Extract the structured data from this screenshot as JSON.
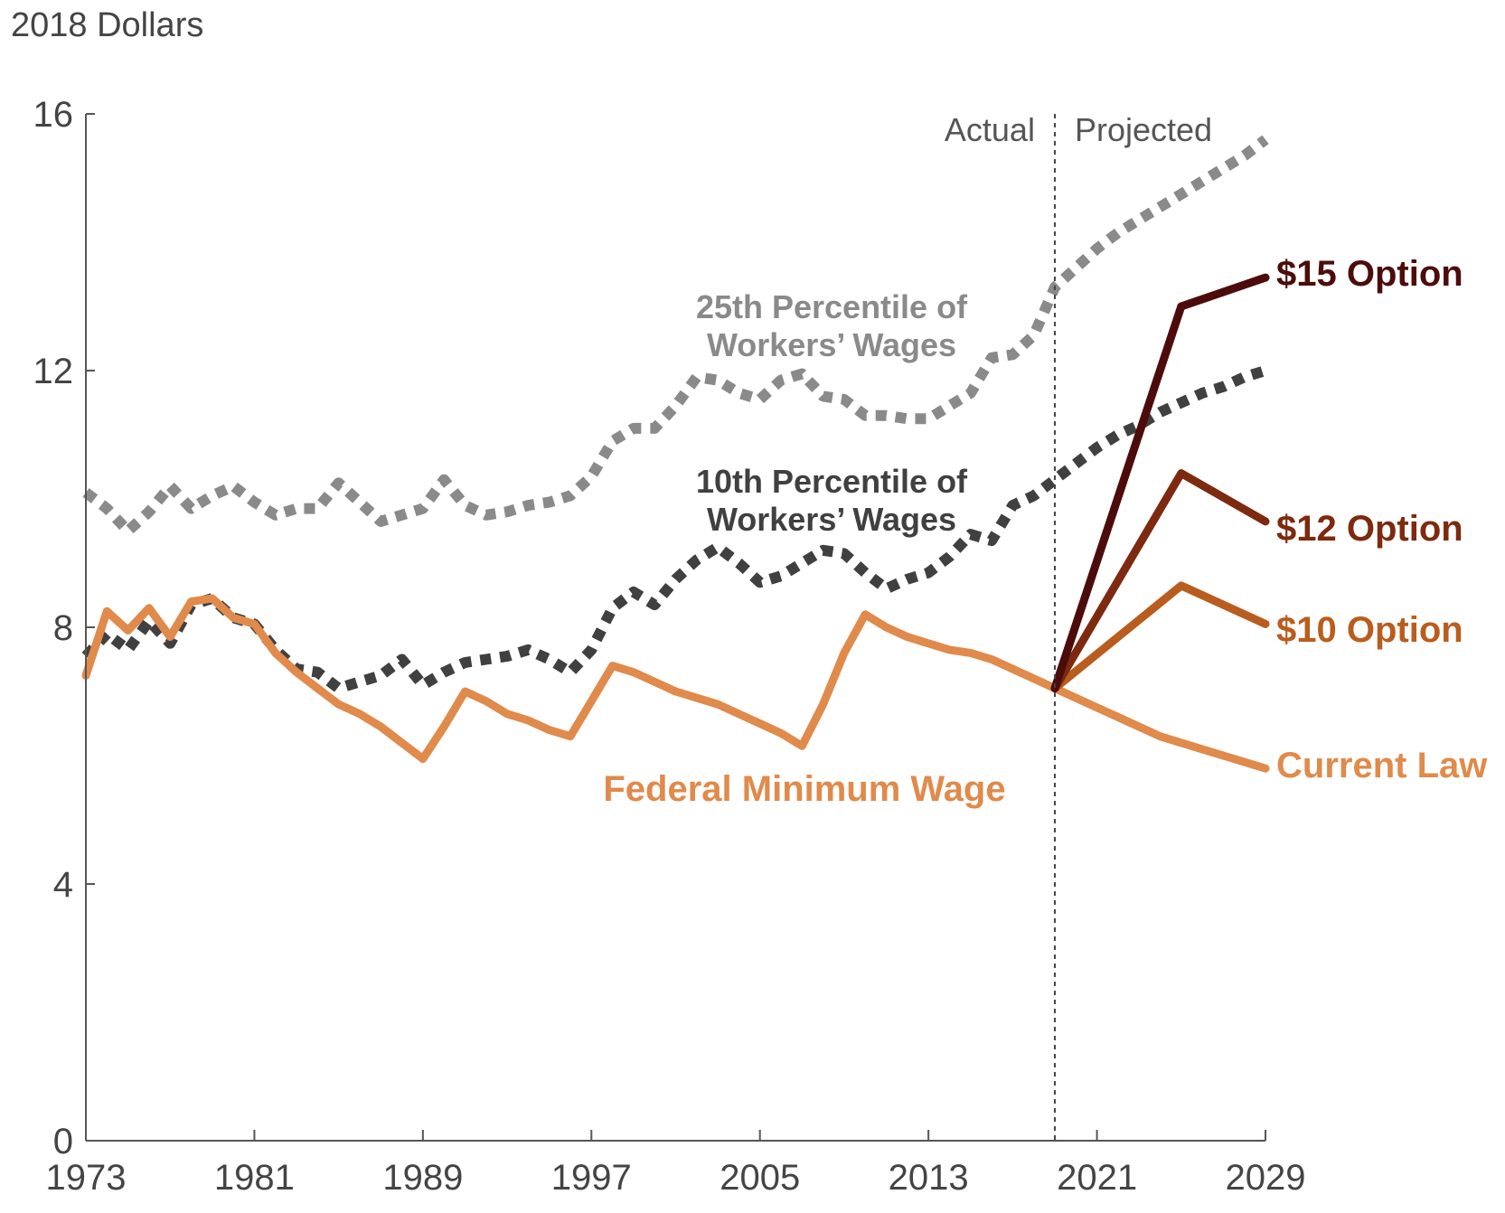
{
  "chart_data": {
    "type": "line",
    "ylabel": "2018 Dollars",
    "ylim": [
      0,
      16
    ],
    "yticks": [
      0,
      4,
      8,
      12,
      16
    ],
    "xlim": [
      1973,
      2029
    ],
    "xticks": [
      1973,
      1981,
      1989,
      1997,
      2005,
      2013,
      2021,
      2029
    ],
    "divider_year": 2019,
    "period_labels": {
      "actual": "Actual",
      "projected": "Projected"
    },
    "series": [
      {
        "name": "25th Percentile of Workers' Wages",
        "label_lines": [
          "25th Percentile of",
          "Workers’ Wages"
        ],
        "color": "#8a8a8a",
        "style": "dotted",
        "x": [
          1973,
          1974,
          1975,
          1976,
          1977,
          1978,
          1979,
          1980,
          1981,
          1982,
          1983,
          1984,
          1985,
          1986,
          1987,
          1988,
          1989,
          1990,
          1991,
          1992,
          1993,
          1994,
          1995,
          1996,
          1997,
          1998,
          1999,
          2000,
          2001,
          2002,
          2003,
          2004,
          2005,
          2006,
          2007,
          2008,
          2009,
          2010,
          2011,
          2012,
          2013,
          2014,
          2015,
          2016,
          2017,
          2018,
          2019,
          2020,
          2021,
          2022,
          2023,
          2024,
          2025,
          2026,
          2027,
          2028,
          2029
        ],
        "values": [
          10.1,
          9.85,
          9.5,
          9.8,
          10.2,
          9.85,
          10.05,
          10.2,
          9.95,
          9.75,
          9.85,
          9.85,
          10.25,
          9.95,
          9.65,
          9.75,
          9.85,
          10.3,
          9.9,
          9.75,
          9.8,
          9.9,
          9.95,
          10.05,
          10.35,
          10.9,
          11.1,
          11.1,
          11.45,
          11.9,
          11.85,
          11.65,
          11.55,
          11.85,
          11.95,
          11.6,
          11.55,
          11.3,
          11.3,
          11.25,
          11.25,
          11.45,
          11.65,
          12.2,
          12.25,
          12.55,
          13.3,
          13.6,
          13.9,
          14.15,
          14.35,
          14.55,
          14.75,
          14.95,
          15.15,
          15.35,
          15.6
        ]
      },
      {
        "name": "10th Percentile of Workers' Wages",
        "label_lines": [
          "10th Percentile of",
          "Workers’ Wages"
        ],
        "color": "#404040",
        "style": "dotted",
        "x": [
          1973,
          1974,
          1975,
          1976,
          1977,
          1978,
          1979,
          1980,
          1981,
          1982,
          1983,
          1984,
          1985,
          1986,
          1987,
          1988,
          1989,
          1990,
          1991,
          1992,
          1993,
          1994,
          1995,
          1996,
          1997,
          1998,
          1999,
          2000,
          2001,
          2002,
          2003,
          2004,
          2005,
          2006,
          2007,
          2008,
          2009,
          2010,
          2011,
          2012,
          2013,
          2014,
          2015,
          2016,
          2017,
          2018,
          2019,
          2020,
          2021,
          2022,
          2023,
          2024,
          2025,
          2026,
          2027,
          2028,
          2029
        ],
        "values": [
          7.55,
          7.9,
          7.65,
          8.1,
          7.75,
          8.35,
          8.45,
          8.15,
          8.05,
          7.65,
          7.35,
          7.3,
          7.05,
          7.15,
          7.25,
          7.5,
          7.1,
          7.3,
          7.45,
          7.5,
          7.55,
          7.65,
          7.5,
          7.3,
          7.65,
          8.3,
          8.55,
          8.35,
          8.75,
          9.05,
          9.25,
          9.0,
          8.7,
          8.8,
          9.0,
          9.2,
          9.15,
          8.85,
          8.6,
          8.75,
          8.85,
          9.1,
          9.45,
          9.35,
          9.9,
          10.05,
          10.3,
          10.55,
          10.8,
          11.0,
          11.15,
          11.35,
          11.5,
          11.65,
          11.75,
          11.9,
          12.0
        ]
      },
      {
        "name": "Current Law",
        "label_lines": [
          "Current Law"
        ],
        "color": "#e08a4b",
        "style": "solid",
        "x": [
          1973,
          1974,
          1975,
          1976,
          1977,
          1978,
          1979,
          1980,
          1981,
          1982,
          1983,
          1984,
          1985,
          1986,
          1987,
          1988,
          1989,
          1990,
          1991,
          1992,
          1993,
          1994,
          1995,
          1996,
          1997,
          1998,
          1999,
          2000,
          2001,
          2002,
          2003,
          2004,
          2005,
          2006,
          2007,
          2008,
          2009,
          2010,
          2011,
          2012,
          2013,
          2014,
          2015,
          2016,
          2017,
          2018,
          2019,
          2020,
          2021,
          2022,
          2023,
          2024,
          2025,
          2026,
          2027,
          2028,
          2029
        ],
        "values": [
          7.25,
          8.25,
          7.95,
          8.3,
          7.85,
          8.4,
          8.45,
          8.15,
          8.05,
          7.6,
          7.3,
          7.05,
          6.8,
          6.65,
          6.45,
          6.2,
          5.95,
          6.45,
          7.0,
          6.85,
          6.65,
          6.55,
          6.4,
          6.3,
          6.85,
          7.4,
          7.3,
          7.15,
          7.0,
          6.9,
          6.8,
          6.65,
          6.5,
          6.35,
          6.15,
          6.8,
          7.6,
          8.2,
          8.0,
          7.85,
          7.75,
          7.65,
          7.6,
          7.5,
          7.35,
          7.2,
          7.05,
          6.9,
          6.75,
          6.6,
          6.45,
          6.3,
          6.2,
          6.1,
          6.0,
          5.9,
          5.8
        ]
      },
      {
        "name": "$10 Option",
        "label_lines": [
          "$10 Option"
        ],
        "color": "#b95d1e",
        "style": "solid",
        "x": [
          2019,
          2025,
          2029
        ],
        "values": [
          7.05,
          8.65,
          8.05
        ]
      },
      {
        "name": "$12 Option",
        "label_lines": [
          "$12 Option"
        ],
        "color": "#7d2a0f",
        "style": "solid",
        "x": [
          2019,
          2025,
          2029
        ],
        "values": [
          7.05,
          10.4,
          9.65
        ]
      },
      {
        "name": "$15 Option",
        "label_lines": [
          "$15 Option"
        ],
        "color": "#4d0c0c",
        "style": "solid",
        "x": [
          2019,
          2025,
          2029
        ],
        "values": [
          7.05,
          13.0,
          13.45
        ]
      }
    ],
    "annotations": [
      {
        "text": "Federal Minimum Wage",
        "color": "#e08a4b"
      }
    ]
  }
}
